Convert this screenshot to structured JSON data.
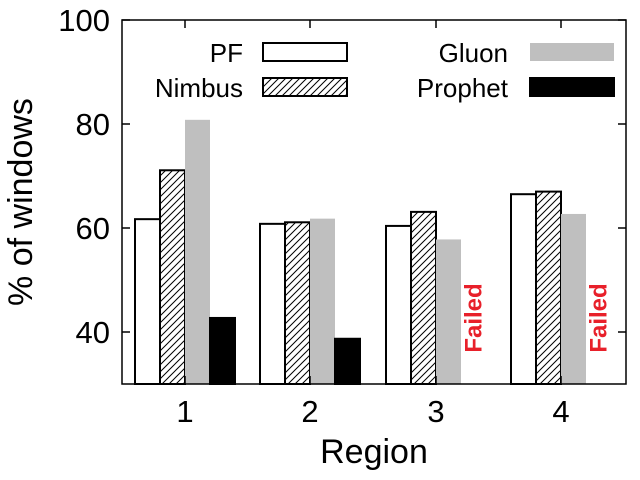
{
  "chart_data": {
    "type": "bar",
    "title": "",
    "xlabel": "Region",
    "ylabel": "% of windows",
    "categories": [
      "1",
      "2",
      "3",
      "4"
    ],
    "ylim": [
      30,
      100
    ],
    "yticks": [
      "40",
      "60",
      "80",
      "100"
    ],
    "grid": false,
    "legend": "top",
    "series": [
      {
        "name": "PF",
        "pattern": "white",
        "values": [
          61.7,
          60.8,
          60.4,
          66.5
        ]
      },
      {
        "name": "Nimbus",
        "pattern": "hatched",
        "values": [
          71.1,
          61.1,
          63.1,
          67.0
        ]
      },
      {
        "name": "Gluon",
        "pattern": "gray",
        "values": [
          80.8,
          61.8,
          57.8,
          62.7
        ]
      },
      {
        "name": "Prophet",
        "pattern": "black",
        "values": [
          42.7,
          38.7,
          null,
          null
        ]
      }
    ],
    "annotations": [
      {
        "category": "3",
        "series": "Prophet",
        "text": "Failed"
      },
      {
        "category": "4",
        "series": "Prophet",
        "text": "Failed"
      }
    ],
    "colors": {
      "gluon": "#bfbfbf",
      "prophet": "#000000",
      "failed": "#e8202a"
    }
  }
}
